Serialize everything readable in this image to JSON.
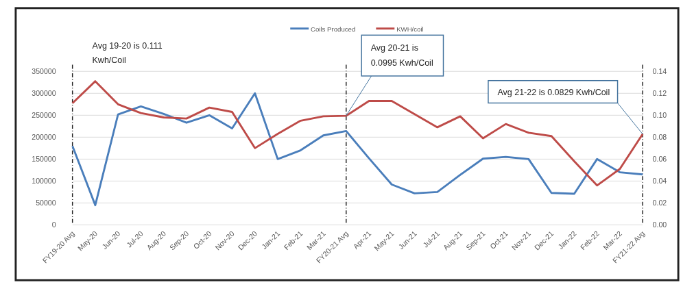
{
  "chart_data": {
    "type": "line",
    "categories": [
      "FY19-20 Avg",
      "May-20",
      "Jun-20",
      "Jul-20",
      "Aug-20",
      "Sep-20",
      "Oct-20",
      "Nov-20",
      "Dec-20",
      "Jan-21",
      "Feb-21",
      "Mar-21",
      "FY20-21 Avg",
      "Apr-21",
      "May-21",
      "Jun-21",
      "Jul-21",
      "Aug-21",
      "Sep-21",
      "Oct-21",
      "Nov-21",
      "Dec-21",
      "Jan-22",
      "Feb-22",
      "Mar-22",
      "FY21-22 Avg"
    ],
    "series": [
      {
        "name": "Coils Produced",
        "color": "#4a7ebb",
        "values": [
          180000,
          45000,
          252000,
          270000,
          253000,
          233000,
          250000,
          220000,
          300000,
          150000,
          170000,
          204000,
          214000,
          152000,
          92000,
          72000,
          75000,
          114000,
          151000,
          155000,
          150000,
          73000,
          71000,
          150000,
          120000,
          115000
        ]
      },
      {
        "name": "KWH/coil",
        "color": "#be4b48",
        "axis": "y2",
        "values": [
          0.111,
          0.131,
          0.11,
          0.102,
          0.098,
          0.097,
          0.107,
          0.103,
          0.07,
          0.083,
          0.095,
          0.099,
          0.0995,
          0.113,
          0.113,
          0.101,
          0.089,
          0.099,
          0.079,
          0.092,
          0.084,
          0.081,
          0.058,
          0.036,
          0.051,
          0.0829
        ]
      }
    ],
    "ylim": [
      0,
      350000
    ],
    "yticks": [
      0,
      50000,
      100000,
      150000,
      200000,
      250000,
      300000,
      350000
    ],
    "y2lim": [
      0,
      0.14
    ],
    "y2ticks": [
      {
        "value": 0,
        "label": "0.00"
      },
      {
        "value": 0.02,
        "label": "0.02"
      },
      {
        "value": 0.04,
        "label": "0.04"
      },
      {
        "value": 0.06,
        "label": "0.06"
      },
      {
        "value": 0.08,
        "label": "0.08"
      },
      {
        "value": 0.1,
        "label": "0.10"
      },
      {
        "value": 0.12,
        "label": "0.12"
      },
      {
        "value": 0.14,
        "label": "0.14"
      }
    ],
    "grid": "y",
    "legend": "top",
    "marker": "none",
    "line_style": "solid",
    "ref_lines": [
      {
        "axis": "x",
        "value": "FY19-20 Avg",
        "line_style": "dashed"
      },
      {
        "axis": "x",
        "value": "FY20-21 Avg",
        "line_style": "dashed"
      },
      {
        "axis": "x",
        "value": "FY21-22 Avg",
        "line_style": "dashed"
      }
    ],
    "annotations": [
      "Avg 19-20 is 0.111 Kwh/Coil",
      {
        "text": "Avg 20-21 is 0.0995 Kwh/Coil",
        "x": "FY20-21 Avg",
        "y": 249000
      },
      {
        "text": "Avg 21-22 is 0.0829 Kwh/Coil",
        "x": "FY21-22 Avg",
        "y": 207000
      }
    ]
  }
}
